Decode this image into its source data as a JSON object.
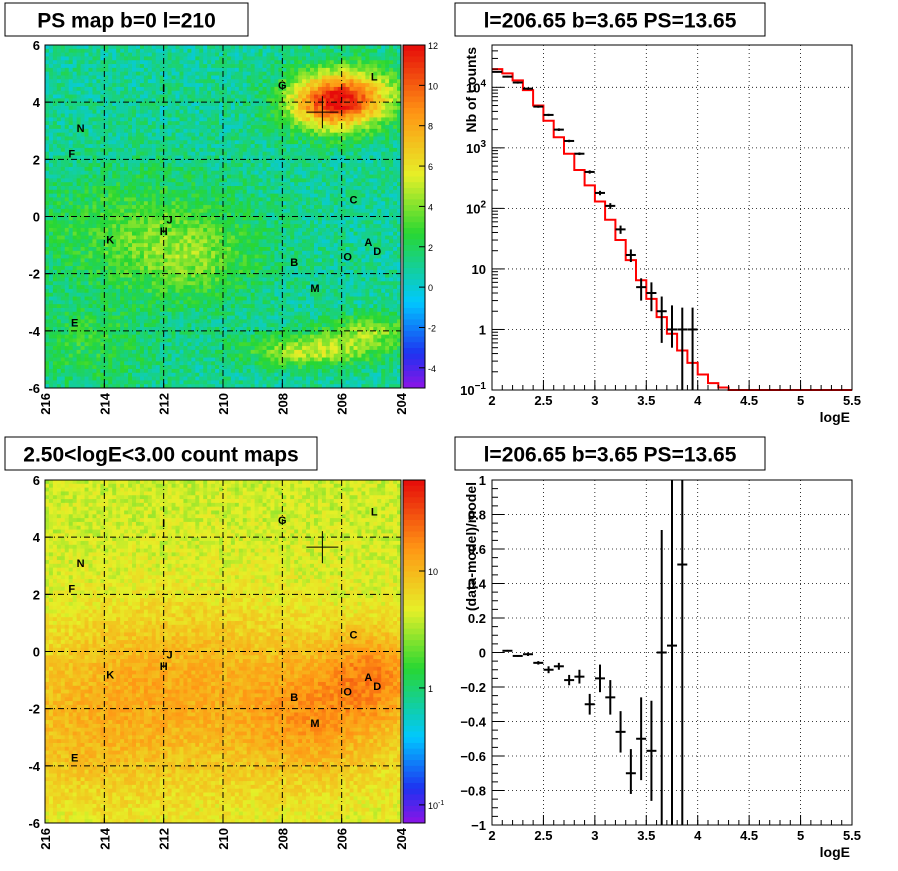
{
  "chart_data": [
    {
      "type": "heatmap",
      "title": "PS map b=0 l=210",
      "xticks": [
        "216",
        "214",
        "212",
        "210",
        "208",
        "206",
        "204"
      ],
      "yticks": [
        "6",
        "4",
        "2",
        "0",
        "-2",
        "-4",
        "-6"
      ],
      "xlim": [
        216,
        204
      ],
      "ylim": [
        -6,
        6
      ],
      "palette_ticks": [
        "12",
        "10",
        "8",
        "6",
        "4",
        "2",
        "0",
        "-2",
        "-4"
      ],
      "palette_range": [
        -5,
        12
      ],
      "grid": true,
      "marker": {
        "l": 206.65,
        "b": 3.65
      },
      "blobs": [
        {
          "l": 206.5,
          "b": 4.0,
          "w": 1.0,
          "h": 0.7,
          "amp": 8
        },
        {
          "l": 205.3,
          "b": 4.2,
          "w": 1.0,
          "h": 0.7,
          "amp": 5
        },
        {
          "l": 207.0,
          "b": -4.7,
          "w": 1.5,
          "h": 0.4,
          "amp": 4
        },
        {
          "l": 205.0,
          "b": -4.0,
          "w": 1.0,
          "h": 0.4,
          "amp": 3
        },
        {
          "l": 213.0,
          "b": -0.5,
          "w": 2.5,
          "h": 1.5,
          "amp": 2
        },
        {
          "l": 211.0,
          "b": -1.5,
          "w": 1.5,
          "h": 1.0,
          "amp": 2
        },
        {
          "l": 214.5,
          "b": -4.5,
          "w": 1.5,
          "h": 1.0,
          "amp": 1.5
        }
      ],
      "base_level": 1,
      "sources": [
        {
          "name": "L",
          "l": 204.9,
          "b": 4.9
        },
        {
          "name": "G",
          "l": 208.0,
          "b": 4.6
        },
        {
          "name": "I",
          "l": 212.0,
          "b": 4.5
        },
        {
          "name": "N",
          "l": 214.8,
          "b": 3.1
        },
        {
          "name": "F",
          "l": 215.1,
          "b": 2.2
        },
        {
          "name": "C",
          "l": 205.6,
          "b": 0.6
        },
        {
          "name": "J",
          "l": 211.8,
          "b": -0.1
        },
        {
          "name": "H",
          "l": 212.0,
          "b": -0.5
        },
        {
          "name": "K",
          "l": 213.8,
          "b": -0.8
        },
        {
          "name": "A",
          "l": 205.1,
          "b": -0.9
        },
        {
          "name": "D",
          "l": 204.8,
          "b": -1.2
        },
        {
          "name": "O",
          "l": 205.8,
          "b": -1.4
        },
        {
          "name": "B",
          "l": 207.6,
          "b": -1.6
        },
        {
          "name": "M",
          "l": 206.9,
          "b": -2.5
        },
        {
          "name": "E",
          "l": 215.0,
          "b": -3.7
        }
      ]
    },
    {
      "type": "line",
      "title": "l=206.65 b=3.65 PS=13.65",
      "xlabel": "logE",
      "ylabel": "Nb of counts",
      "xlim": [
        2,
        5.5
      ],
      "ylim": [
        0.1,
        50000
      ],
      "yscale": "log",
      "grid": true,
      "xticks": [
        "2",
        "2.5",
        "3",
        "3.5",
        "4",
        "4.5",
        "5",
        "5.5"
      ],
      "yticks": [
        {
          "v": 0.1,
          "base": "10",
          "exp": "−1"
        },
        {
          "v": 1,
          "text": "1"
        },
        {
          "v": 10,
          "text": "10"
        },
        {
          "v": 100,
          "base": "10",
          "exp": "2"
        },
        {
          "v": 1000,
          "base": "10",
          "exp": "3"
        },
        {
          "v": 10000,
          "base": "10",
          "exp": "4"
        }
      ],
      "series": [
        {
          "color": "#ff0000",
          "edges": [
            2.0,
            2.1,
            2.2,
            2.3,
            2.4,
            2.5,
            2.6,
            2.7,
            2.8,
            2.9,
            3.0,
            3.1,
            3.2,
            3.3,
            3.4,
            3.5,
            3.6,
            3.7,
            3.8,
            3.9,
            4.0,
            4.1,
            4.2,
            4.3,
            4.4,
            4.5,
            4.6,
            4.7,
            4.8,
            4.9,
            5.0,
            5.1,
            5.2,
            5.3,
            5.4,
            5.5
          ],
          "values": [
            20000,
            17000,
            13000,
            9000,
            5000,
            2800,
            1500,
            800,
            430,
            240,
            130,
            65,
            30,
            14,
            6.5,
            3.2,
            1.6,
            0.85,
            0.45,
            0.28,
            0.18,
            0.13,
            0.11,
            0.1,
            0.1,
            0.1,
            0.1,
            0.1,
            0.1,
            0.1,
            0.1,
            0.1,
            0.1,
            0.1,
            0.1
          ]
        },
        {
          "color": "#000000",
          "points": [
            {
              "x": 2.05,
              "y": 18000,
              "lo": 17500,
              "hi": 18500
            },
            {
              "x": 2.15,
              "y": 15000,
              "lo": 14500,
              "hi": 15500
            },
            {
              "x": 2.25,
              "y": 12000,
              "lo": 11500,
              "hi": 12500
            },
            {
              "x": 2.35,
              "y": 9500,
              "lo": 9100,
              "hi": 9900
            },
            {
              "x": 2.45,
              "y": 4800,
              "lo": 4600,
              "hi": 5000
            },
            {
              "x": 2.55,
              "y": 3500,
              "lo": 3350,
              "hi": 3650
            },
            {
              "x": 2.65,
              "y": 2000,
              "lo": 1900,
              "hi": 2100
            },
            {
              "x": 2.75,
              "y": 1300,
              "lo": 1240,
              "hi": 1360
            },
            {
              "x": 2.85,
              "y": 800,
              "lo": 760,
              "hi": 840
            },
            {
              "x": 2.95,
              "y": 400,
              "lo": 375,
              "hi": 425
            },
            {
              "x": 3.05,
              "y": 180,
              "lo": 165,
              "hi": 195
            },
            {
              "x": 3.15,
              "y": 110,
              "lo": 98,
              "hi": 122
            },
            {
              "x": 3.25,
              "y": 45,
              "lo": 38,
              "hi": 52
            },
            {
              "x": 3.35,
              "y": 17,
              "lo": 13,
              "hi": 21
            },
            {
              "x": 3.45,
              "y": 5,
              "lo": 3,
              "hi": 7
            },
            {
              "x": 3.55,
              "y": 4,
              "lo": 2,
              "hi": 6
            },
            {
              "x": 3.65,
              "y": 2,
              "lo": 0.6,
              "hi": 3.5
            },
            {
              "x": 3.75,
              "y": 1,
              "lo": 0.5,
              "hi": 2.5
            },
            {
              "x": 3.85,
              "y": 1,
              "lo": 0.1,
              "hi": 2.3
            },
            {
              "x": 3.95,
              "y": 1,
              "lo": 0.1,
              "hi": 2.3
            }
          ]
        }
      ]
    },
    {
      "type": "heatmap",
      "title": "2.50<logE<3.00 count maps",
      "xticks": [
        "216",
        "214",
        "212",
        "210",
        "208",
        "206",
        "204"
      ],
      "yticks": [
        "6",
        "4",
        "2",
        "0",
        "-2",
        "-4",
        "-6"
      ],
      "xlim": [
        216,
        204
      ],
      "ylim": [
        -6,
        6
      ],
      "palette_ticks": [
        {
          "v": 10,
          "text": "10"
        },
        {
          "v": 1,
          "text": "1"
        },
        {
          "v": 0.1,
          "base": "10",
          "exp": "-1"
        }
      ],
      "palette_scale": "log",
      "palette_range": [
        0.07,
        60
      ],
      "grid": true,
      "marker": {
        "l": 206.65,
        "b": 3.65
      },
      "blobs": [
        {
          "l": 205.0,
          "b": -0.9,
          "w": 1.0,
          "h": 0.9,
          "amp": 12
        },
        {
          "l": 207.0,
          "b": -2.2,
          "w": 1.5,
          "h": 1.2,
          "amp": 8
        },
        {
          "l": 212.0,
          "b": -1.0,
          "w": 2.5,
          "h": 1.5,
          "amp": 4
        },
        {
          "l": 214.5,
          "b": -3.0,
          "w": 2.0,
          "h": 1.5,
          "amp": 3
        },
        {
          "l": 210.0,
          "b": -2.0,
          "w": 6.0,
          "h": 2.5,
          "amp": 4
        }
      ],
      "base_level": 4,
      "sources": [
        {
          "name": "L",
          "l": 204.9,
          "b": 4.9
        },
        {
          "name": "G",
          "l": 208.0,
          "b": 4.6
        },
        {
          "name": "I",
          "l": 212.0,
          "b": 4.5
        },
        {
          "name": "N",
          "l": 214.8,
          "b": 3.1
        },
        {
          "name": "F",
          "l": 215.1,
          "b": 2.2
        },
        {
          "name": "C",
          "l": 205.6,
          "b": 0.6
        },
        {
          "name": "J",
          "l": 211.8,
          "b": -0.1
        },
        {
          "name": "H",
          "l": 212.0,
          "b": -0.5
        },
        {
          "name": "K",
          "l": 213.8,
          "b": -0.8
        },
        {
          "name": "A",
          "l": 205.1,
          "b": -0.9
        },
        {
          "name": "D",
          "l": 204.8,
          "b": -1.2
        },
        {
          "name": "O",
          "l": 205.8,
          "b": -1.4
        },
        {
          "name": "B",
          "l": 207.6,
          "b": -1.6
        },
        {
          "name": "M",
          "l": 206.9,
          "b": -2.5
        },
        {
          "name": "E",
          "l": 215.0,
          "b": -3.7
        }
      ]
    },
    {
      "type": "scatter",
      "title": "l=206.65 b=3.65 PS=13.65",
      "xlabel": "logE",
      "ylabel": "(data-model)/model",
      "xlim": [
        2,
        5.5
      ],
      "ylim": [
        -1,
        1
      ],
      "grid": true,
      "xticks": [
        "2",
        "2.5",
        "3",
        "3.5",
        "4",
        "4.5",
        "5",
        "5.5"
      ],
      "yticks": [
        "−1",
        "−0.8",
        "−0.6",
        "−0.4",
        "−0.2",
        "0",
        "0.2",
        "0.4",
        "0.6",
        "0.8",
        "1"
      ],
      "series": [
        {
          "color": "#000000",
          "points": [
            {
              "x": 2.15,
              "y": 0.01,
              "lo": 0.005,
              "hi": 0.015
            },
            {
              "x": 2.25,
              "y": -0.02,
              "lo": -0.025,
              "hi": -0.015
            },
            {
              "x": 2.35,
              "y": -0.01,
              "lo": -0.02,
              "hi": 0.0
            },
            {
              "x": 2.45,
              "y": -0.06,
              "lo": -0.07,
              "hi": -0.05
            },
            {
              "x": 2.55,
              "y": -0.1,
              "lo": -0.12,
              "hi": -0.08
            },
            {
              "x": 2.65,
              "y": -0.08,
              "lo": -0.1,
              "hi": -0.06
            },
            {
              "x": 2.75,
              "y": -0.16,
              "lo": -0.19,
              "hi": -0.13
            },
            {
              "x": 2.85,
              "y": -0.14,
              "lo": -0.18,
              "hi": -0.1
            },
            {
              "x": 2.95,
              "y": -0.3,
              "lo": -0.36,
              "hi": -0.24
            },
            {
              "x": 3.05,
              "y": -0.15,
              "lo": -0.23,
              "hi": -0.07
            },
            {
              "x": 3.15,
              "y": -0.26,
              "lo": -0.36,
              "hi": -0.16
            },
            {
              "x": 3.25,
              "y": -0.46,
              "lo": -0.58,
              "hi": -0.34
            },
            {
              "x": 3.35,
              "y": -0.7,
              "lo": -0.82,
              "hi": -0.56
            },
            {
              "x": 3.45,
              "y": -0.5,
              "lo": -0.74,
              "hi": -0.26
            },
            {
              "x": 3.55,
              "y": -0.57,
              "lo": -0.86,
              "hi": -0.28
            },
            {
              "x": 3.65,
              "y": 0.0,
              "lo": -1.0,
              "hi": 0.71
            },
            {
              "x": 3.75,
              "y": 0.04,
              "lo": -1.0,
              "hi": 1.0
            },
            {
              "x": 3.85,
              "y": 0.51,
              "lo": -1.0,
              "hi": 1.0
            }
          ]
        }
      ]
    }
  ]
}
